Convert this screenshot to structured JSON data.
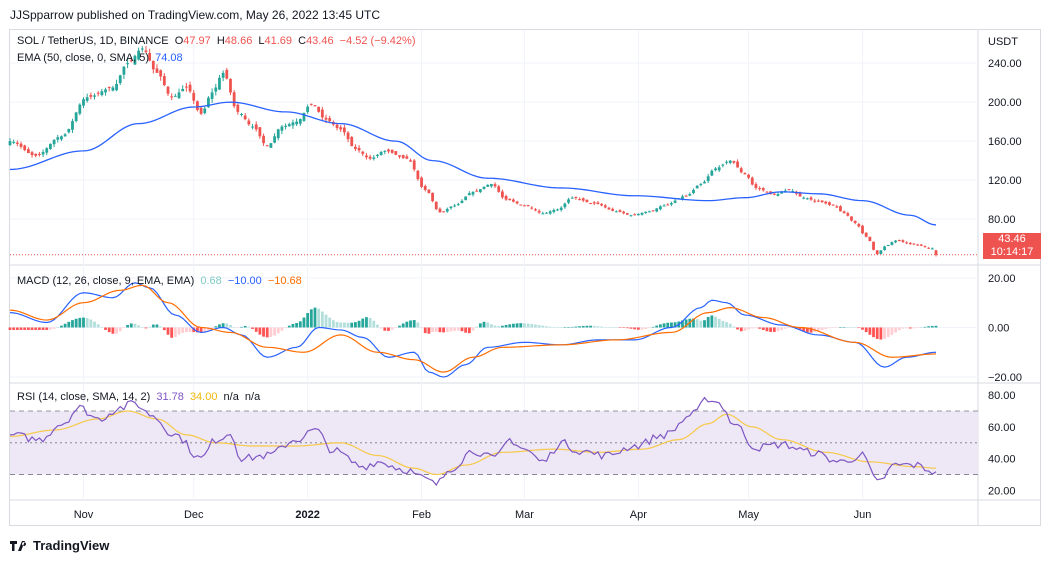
{
  "header": {
    "text": "JJSpparrow published on TradingView.com, May 26, 2022 13:45 UTC"
  },
  "footer": {
    "brand": "TradingView"
  },
  "price_axis_label": "USDT",
  "main_legend": {
    "symbol": "SOL / TetherUS, 1D, BINANCE",
    "open_label": "O",
    "open": "47.97",
    "high_label": "H",
    "high": "48.66",
    "low_label": "L",
    "low": "41.69",
    "close_label": "C",
    "close": "43.46",
    "change": "−4.52 (−9.42%)",
    "ema_label": "EMA (50, close, 0, SMA, 5)",
    "ema_value": "74.08"
  },
  "macd_legend": {
    "label": "MACD (12, 26, close, 9, EMA, EMA)",
    "hist": "0.68",
    "macd": "−10.00",
    "signal": "−10.68"
  },
  "rsi_legend": {
    "label": "RSI (14, close, SMA, 14, 2)",
    "rsi": "31.78",
    "ma": "34.00",
    "na1": "n/a",
    "na2": "n/a"
  },
  "price_tag": {
    "price": "43.46",
    "countdown": "10:14:17"
  },
  "colors": {
    "up": "#26a69a",
    "down": "#ef5350",
    "ema": "#2962ff",
    "macd": "#2962ff",
    "signal": "#ff6d00",
    "rsi": "#7e57c2",
    "rsi_ma": "#f7c948",
    "rsi_band": "#ede7f6",
    "hist_up_strong": "#26a69a",
    "hist_up_weak": "#b2dfdb",
    "hist_down_strong": "#ff5252",
    "hist_down_weak": "#ffcdd2"
  },
  "chart_data": [
    {
      "type": "candlestick",
      "title": "SOL / TetherUS, 1D, BINANCE",
      "x_ticks": [
        "Nov",
        "Dec",
        "2022",
        "Feb",
        "Mar",
        "Apr",
        "May",
        "Jun"
      ],
      "x_tick_dates": [
        "2021-11-01",
        "2021-12-01",
        "2022-01-01",
        "2022-02-01",
        "2022-03-01",
        "2022-04-01",
        "2022-05-01",
        "2022-06-01"
      ],
      "start_date": "2021-10-12",
      "y_ticks": [
        80,
        120,
        160,
        200,
        240
      ],
      "ylim": [
        34,
        274
      ],
      "close_anchors": [
        [
          0,
          160
        ],
        [
          7,
          145
        ],
        [
          14,
          165
        ],
        [
          21,
          205
        ],
        [
          28,
          215
        ],
        [
          32,
          240
        ],
        [
          36,
          255
        ],
        [
          40,
          230
        ],
        [
          44,
          205
        ],
        [
          48,
          215
        ],
        [
          52,
          188
        ],
        [
          55,
          210
        ],
        [
          58,
          230
        ],
        [
          62,
          190
        ],
        [
          66,
          175
        ],
        [
          70,
          155
        ],
        [
          74,
          175
        ],
        [
          78,
          180
        ],
        [
          82,
          198
        ],
        [
          86,
          182
        ],
        [
          90,
          172
        ],
        [
          94,
          152
        ],
        [
          98,
          142
        ],
        [
          102,
          150
        ],
        [
          108,
          142
        ],
        [
          113,
          110
        ],
        [
          117,
          87
        ],
        [
          121,
          94
        ],
        [
          126,
          108
        ],
        [
          131,
          116
        ],
        [
          135,
          100
        ],
        [
          140,
          94
        ],
        [
          145,
          86
        ],
        [
          149,
          90
        ],
        [
          153,
          102
        ],
        [
          159,
          96
        ],
        [
          165,
          88
        ],
        [
          169,
          84
        ],
        [
          174,
          88
        ],
        [
          178,
          94
        ],
        [
          184,
          104
        ],
        [
          188,
          116
        ],
        [
          192,
          132
        ],
        [
          196,
          140
        ],
        [
          200,
          126
        ],
        [
          203,
          112
        ],
        [
          208,
          105
        ],
        [
          212,
          110
        ],
        [
          216,
          102
        ],
        [
          220,
          98
        ],
        [
          224,
          94
        ],
        [
          227,
          86
        ],
        [
          230,
          76
        ],
        [
          233,
          62
        ],
        [
          236,
          44
        ],
        [
          238,
          52
        ],
        [
          241,
          58
        ],
        [
          246,
          54
        ],
        [
          251,
          50
        ],
        [
          252,
          43.46
        ]
      ],
      "ema_anchors": [
        [
          0,
          131
        ],
        [
          20,
          150
        ],
        [
          35,
          178
        ],
        [
          50,
          195
        ],
        [
          60,
          200
        ],
        [
          75,
          190
        ],
        [
          90,
          178
        ],
        [
          105,
          160
        ],
        [
          115,
          140
        ],
        [
          130,
          122
        ],
        [
          150,
          112
        ],
        [
          170,
          104
        ],
        [
          190,
          99
        ],
        [
          200,
          102
        ],
        [
          210,
          108
        ],
        [
          220,
          106
        ],
        [
          232,
          99
        ],
        [
          245,
          84
        ],
        [
          252,
          74.08
        ]
      ],
      "ohlc_last": {
        "open": 47.97,
        "high": 48.66,
        "low": 41.69,
        "close": 43.46
      }
    },
    {
      "type": "histogram",
      "title": "MACD (12, 26, close, 9, EMA, EMA)",
      "y_ticks": [
        -20,
        0,
        20
      ],
      "ylim": [
        -22,
        24
      ],
      "macd_anchors": [
        [
          0,
          6
        ],
        [
          10,
          2
        ],
        [
          20,
          14
        ],
        [
          28,
          12
        ],
        [
          34,
          18
        ],
        [
          38,
          16
        ],
        [
          45,
          5
        ],
        [
          52,
          -2
        ],
        [
          58,
          0
        ],
        [
          63,
          -3
        ],
        [
          70,
          -12
        ],
        [
          78,
          -8
        ],
        [
          84,
          0
        ],
        [
          90,
          -1
        ],
        [
          96,
          -4
        ],
        [
          103,
          -12
        ],
        [
          110,
          -10
        ],
        [
          114,
          -18
        ],
        [
          118,
          -20
        ],
        [
          124,
          -15
        ],
        [
          130,
          -8
        ],
        [
          140,
          -6
        ],
        [
          150,
          -7
        ],
        [
          160,
          -5
        ],
        [
          170,
          -5
        ],
        [
          180,
          0
        ],
        [
          188,
          8
        ],
        [
          191,
          11
        ],
        [
          195,
          10
        ],
        [
          200,
          5
        ],
        [
          210,
          1
        ],
        [
          220,
          -3
        ],
        [
          230,
          -6
        ],
        [
          238,
          -16
        ],
        [
          244,
          -12
        ],
        [
          252,
          -10
        ]
      ],
      "signal_anchors": [
        [
          0,
          7
        ],
        [
          10,
          3
        ],
        [
          20,
          10
        ],
        [
          30,
          15
        ],
        [
          36,
          17
        ],
        [
          43,
          10
        ],
        [
          52,
          0
        ],
        [
          60,
          -2
        ],
        [
          70,
          -8
        ],
        [
          80,
          -10
        ],
        [
          90,
          -3
        ],
        [
          100,
          -10
        ],
        [
          110,
          -13
        ],
        [
          118,
          -18
        ],
        [
          126,
          -12
        ],
        [
          134,
          -8
        ],
        [
          150,
          -7
        ],
        [
          165,
          -5
        ],
        [
          180,
          -2
        ],
        [
          190,
          6
        ],
        [
          196,
          8
        ],
        [
          205,
          4
        ],
        [
          215,
          0
        ],
        [
          230,
          -6
        ],
        [
          240,
          -12
        ],
        [
          252,
          -10.68
        ]
      ],
      "hist_last": 0.68,
      "macd_last": -10,
      "signal_last": -10.68
    },
    {
      "type": "line",
      "title": "RSI (14, close, SMA, 14, 2)",
      "y_ticks": [
        20,
        40,
        60,
        80
      ],
      "ylim": [
        14,
        87
      ],
      "bands": [
        30,
        50,
        70
      ],
      "rsi_anchors": [
        [
          0,
          55
        ],
        [
          8,
          52
        ],
        [
          14,
          62
        ],
        [
          19,
          72
        ],
        [
          24,
          65
        ],
        [
          30,
          72
        ],
        [
          34,
          75
        ],
        [
          38,
          68
        ],
        [
          45,
          55
        ],
        [
          52,
          40
        ],
        [
          56,
          52
        ],
        [
          60,
          56
        ],
        [
          63,
          40
        ],
        [
          70,
          42
        ],
        [
          78,
          52
        ],
        [
          83,
          58
        ],
        [
          88,
          45
        ],
        [
          96,
          35
        ],
        [
          100,
          38
        ],
        [
          108,
          33
        ],
        [
          112,
          28
        ],
        [
          116,
          24
        ],
        [
          120,
          34
        ],
        [
          126,
          45
        ],
        [
          132,
          40
        ],
        [
          136,
          52
        ],
        [
          140,
          46
        ],
        [
          145,
          38
        ],
        [
          150,
          50
        ],
        [
          155,
          45
        ],
        [
          162,
          42
        ],
        [
          170,
          48
        ],
        [
          178,
          55
        ],
        [
          186,
          68
        ],
        [
          190,
          78
        ],
        [
          193,
          75
        ],
        [
          197,
          62
        ],
        [
          203,
          47
        ],
        [
          210,
          49
        ],
        [
          218,
          44
        ],
        [
          226,
          38
        ],
        [
          232,
          42
        ],
        [
          236,
          25
        ],
        [
          241,
          36
        ],
        [
          246,
          36
        ],
        [
          252,
          31.78
        ]
      ],
      "ma_anchors": [
        [
          0,
          54
        ],
        [
          12,
          58
        ],
        [
          24,
          65
        ],
        [
          32,
          70
        ],
        [
          40,
          65
        ],
        [
          48,
          55
        ],
        [
          56,
          50
        ],
        [
          66,
          48
        ],
        [
          78,
          48
        ],
        [
          90,
          50
        ],
        [
          100,
          42
        ],
        [
          110,
          34
        ],
        [
          116,
          30
        ],
        [
          124,
          36
        ],
        [
          134,
          44
        ],
        [
          148,
          46
        ],
        [
          160,
          44
        ],
        [
          172,
          46
        ],
        [
          182,
          52
        ],
        [
          190,
          62
        ],
        [
          195,
          68
        ],
        [
          202,
          60
        ],
        [
          210,
          52
        ],
        [
          222,
          44
        ],
        [
          234,
          38
        ],
        [
          246,
          35
        ],
        [
          252,
          34
        ]
      ],
      "rsi_last": 31.78,
      "ma_last": 34
    }
  ]
}
